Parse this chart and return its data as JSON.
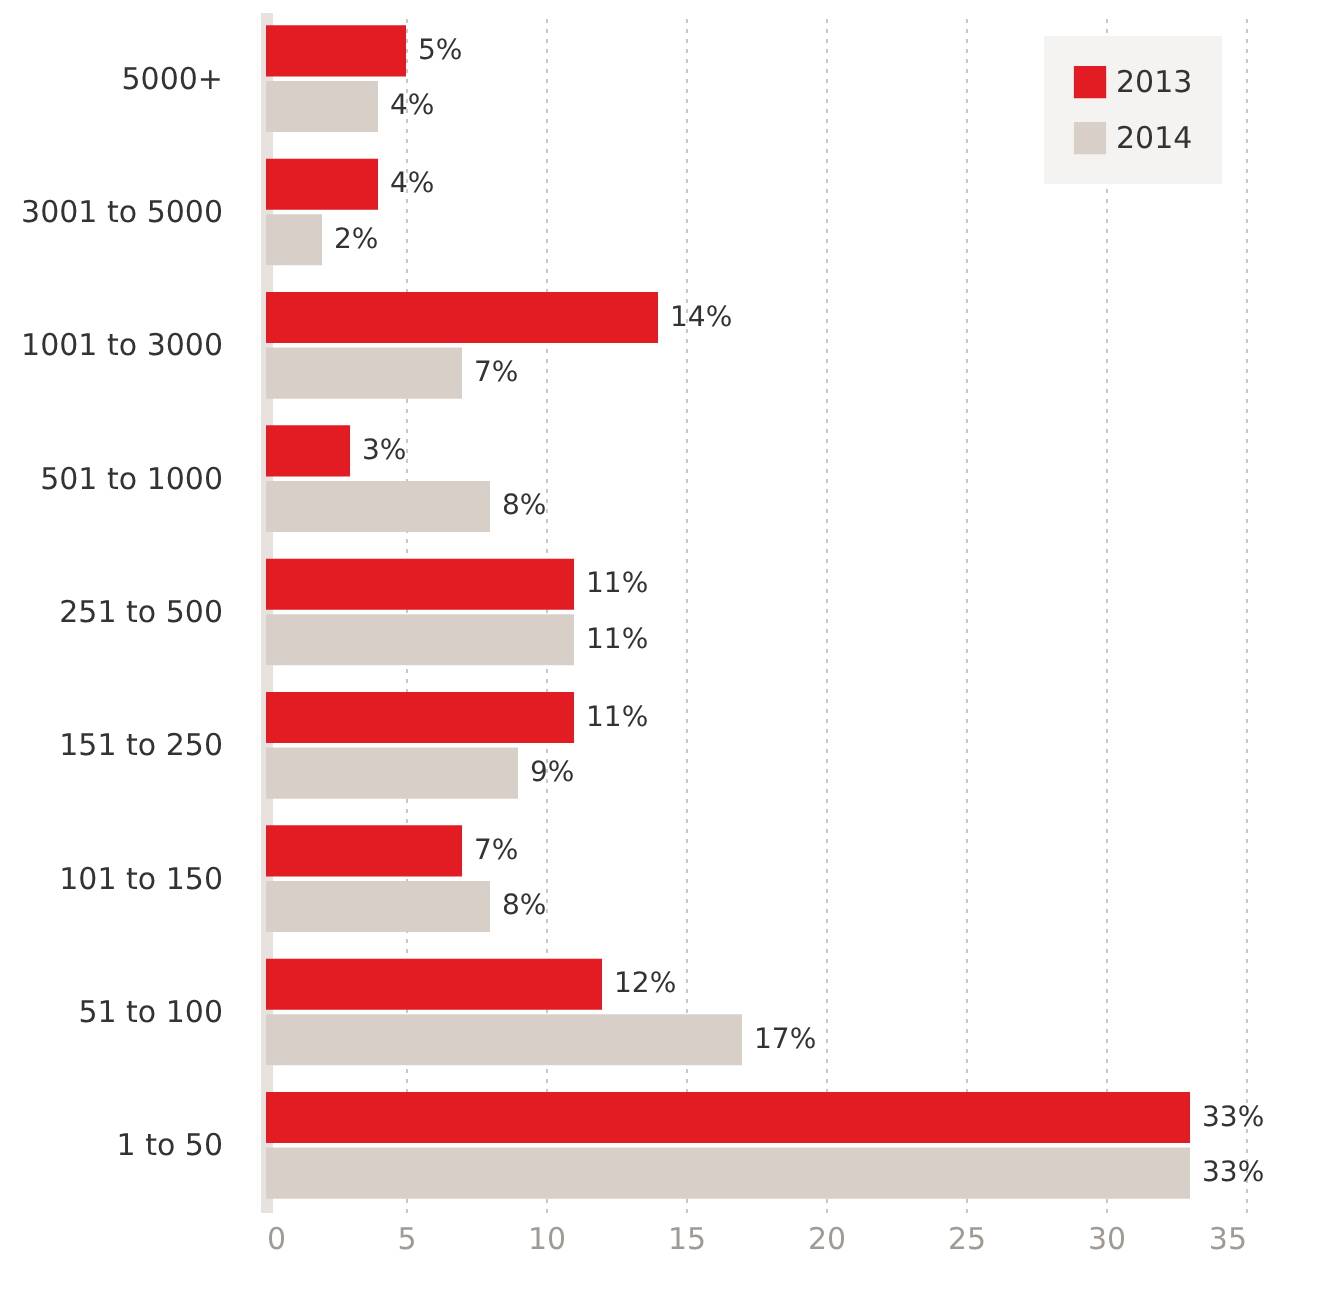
{
  "chart_data": {
    "type": "bar",
    "orientation": "horizontal",
    "categories": [
      "5000+",
      "3001 to 5000",
      "1001 to 3000",
      "501 to 1000",
      "251 to 500",
      "151 to 250",
      "101 to 150",
      "51 to 100",
      "1 to 50"
    ],
    "series": [
      {
        "name": "2013",
        "color": "#e31b23",
        "values": [
          5,
          4,
          14,
          3,
          11,
          11,
          7,
          12,
          33
        ],
        "value_labels": [
          "5%",
          "4%",
          "14%",
          "3%",
          "11%",
          "11%",
          "7%",
          "12%",
          "33%"
        ]
      },
      {
        "name": "2014",
        "color": "#d9cfc9",
        "values": [
          4,
          2,
          7,
          8,
          11,
          9,
          8,
          17,
          33
        ],
        "value_labels": [
          "4%",
          "2%",
          "7%",
          "8%",
          "11%",
          "9%",
          "8%",
          "17%",
          "33%"
        ]
      }
    ],
    "xlim": [
      0,
      35
    ],
    "xticks": [
      0,
      5,
      10,
      15,
      20,
      25,
      30,
      35
    ],
    "grid": "x",
    "legend": "top right"
  }
}
